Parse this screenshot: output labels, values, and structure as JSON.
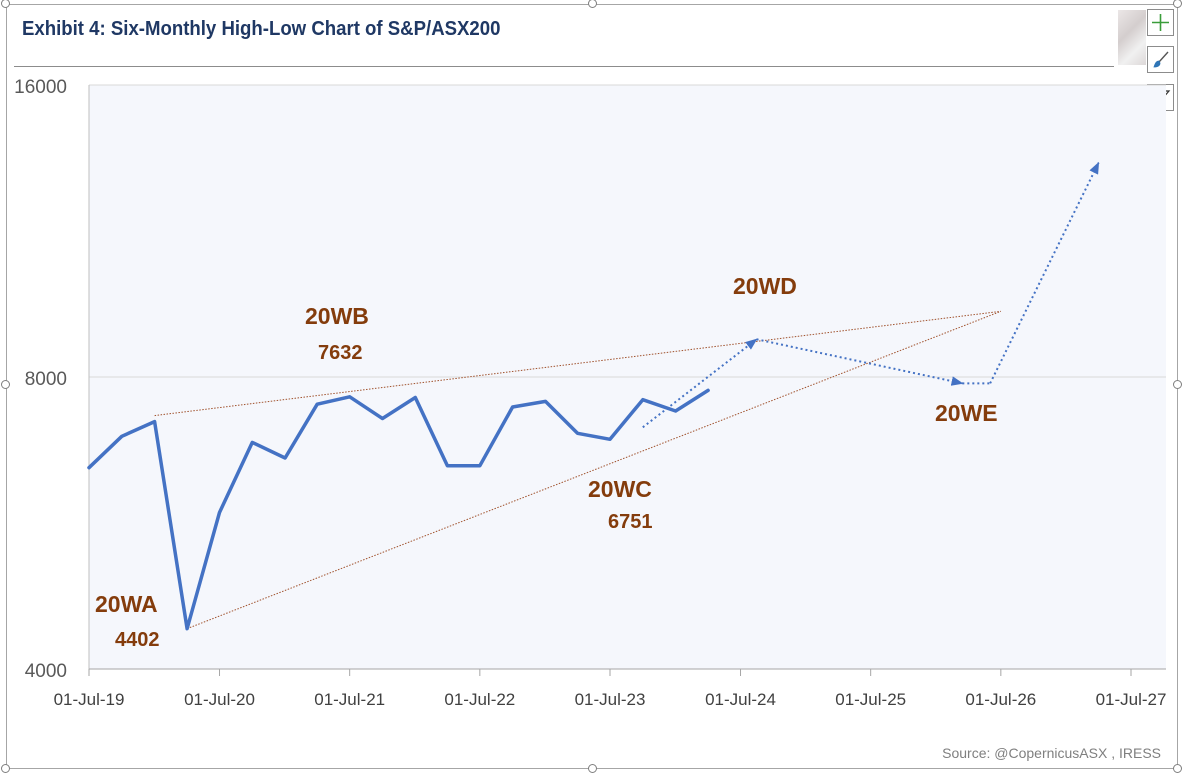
{
  "title": "Exhibit 4: Six-Monthly High-Low Chart of S&P/ASX200",
  "source": "Source: @CopernicusASX , IRESS",
  "toolbar": {
    "add_icon": "plus-icon",
    "style_icon": "paintbrush-icon",
    "filter_icon": "filter-icon"
  },
  "colors": {
    "series": "#4472c4",
    "annotation": "#843c0c",
    "trendline": "#a0522d",
    "plot_bg": "#f5f7fc",
    "title": "#1f3864"
  },
  "chart_data": {
    "type": "line",
    "title": "Exhibit 4: Six-Monthly High-Low Chart of S&P/ASX200",
    "xlabel": "",
    "ylabel": "",
    "x_ticks": [
      "01-Jul-19",
      "01-Jul-20",
      "01-Jul-21",
      "01-Jul-22",
      "01-Jul-23",
      "01-Jul-24",
      "01-Jul-25",
      "01-Jul-26",
      "01-Jul-27"
    ],
    "xlim": [
      "2019-07-01",
      "2027-07-01"
    ],
    "y_ticks": [
      4000,
      8000,
      16000
    ],
    "ylim": [
      4000,
      16000
    ],
    "y_scale": "log",
    "grid": "horizontal",
    "legend": "none",
    "series": [
      {
        "x": [
          "2019-07-01",
          "2019-10-01",
          "2020-01-01",
          "2020-04-01",
          "2020-07-01",
          "2020-10-01",
          "2021-01-01",
          "2021-04-01",
          "2021-07-01",
          "2021-10-01",
          "2022-01-01",
          "2022-04-01",
          "2022-07-01",
          "2022-10-01",
          "2023-01-01",
          "2023-04-01",
          "2023-07-01",
          "2023-10-01",
          "2024-01-01",
          "2024-04-01"
        ],
        "values": [
          6450,
          6950,
          7197,
          4402,
          5800,
          6850,
          6600,
          7500,
          7632,
          7250,
          7620,
          6480,
          6480,
          7450,
          7550,
          7000,
          6900,
          7580,
          7380,
          7750
        ]
      }
    ],
    "projections": [
      {
        "x": [
          "2023-10-01",
          "2024-08-15",
          "2026-03-15",
          "2026-06-01",
          "2027-04-01"
        ],
        "values": [
          7100,
          8750,
          7880,
          7880,
          13300
        ]
      }
    ],
    "trendlines": [
      {
        "x": [
          "2020-01-01",
          "2026-07-01"
        ],
        "values": [
          7300,
          9350
        ]
      },
      {
        "x": [
          "2020-04-01",
          "2026-07-01"
        ],
        "values": [
          4402,
          9350
        ]
      }
    ],
    "annotations": [
      {
        "label": "20WA",
        "value_label": "4402"
      },
      {
        "label": "20WB",
        "value_label": "7632"
      },
      {
        "label": "20WC",
        "value_label": "6751"
      },
      {
        "label": "20WD"
      },
      {
        "label": "20WE"
      }
    ]
  }
}
